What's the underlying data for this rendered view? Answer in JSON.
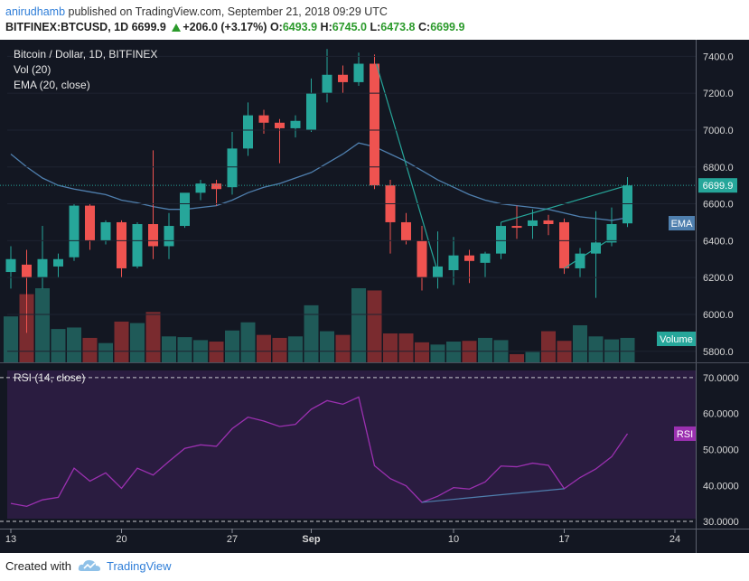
{
  "header": {
    "author": "anirudhamb",
    "published_text": "published on TradingView.com, September 21, 2018 09:29 UTC",
    "symbol": "BITFINEX:BTCUSD, 1D",
    "last": "6699.9",
    "change": "+206.0 (+3.17%)",
    "o_label": "O:",
    "o_value": "6493.9",
    "h_label": "H:",
    "h_value": "6745.0",
    "l_label": "L:",
    "l_value": "6473.8",
    "c_label": "C:",
    "c_value": "6699.9"
  },
  "legend": {
    "main_title": "Bitcoin / Dollar, 1D, BITFINEX",
    "vol": "Vol (20)",
    "ema": "EMA (20, close)",
    "rsi": "RSI (14, close)"
  },
  "badges": {
    "price": "6699.9",
    "ema": "EMA",
    "volume": "Volume",
    "rsi": "RSI"
  },
  "footer": {
    "created_with": "Created with",
    "brand": "TradingView"
  },
  "colors": {
    "bull": "#26a69a",
    "bear": "#ef5350",
    "bull_volume": "#1f5a58",
    "bear_volume": "#7a2b2f",
    "ema": "#4f7fae",
    "rsi": "#9b30b0",
    "background": "#131722"
  },
  "chart_data": [
    {
      "type": "candlestick",
      "title": "Bitcoin / Dollar, 1D, BITFINEX",
      "x_ticks": [
        "13",
        "20",
        "27",
        "Sep",
        "10",
        "17",
        "24"
      ],
      "y_ticks": [
        5800,
        6000,
        6200,
        6400,
        6600,
        6800,
        7000,
        7200,
        7400
      ],
      "ylim": [
        5740,
        7490
      ],
      "current_price": 6699.9,
      "candles": [
        {
          "o": 6230,
          "h": 6370,
          "l": 6140,
          "c": 6300
        },
        {
          "o": 6270,
          "h": 6350,
          "l": 5900,
          "c": 6200
        },
        {
          "o": 6200,
          "h": 6480,
          "l": 6140,
          "c": 6300
        },
        {
          "o": 6260,
          "h": 6330,
          "l": 6200,
          "c": 6300
        },
        {
          "o": 6310,
          "h": 6600,
          "l": 6290,
          "c": 6590
        },
        {
          "o": 6590,
          "h": 6600,
          "l": 6350,
          "c": 6400
        },
        {
          "o": 6400,
          "h": 6510,
          "l": 6380,
          "c": 6500
        },
        {
          "o": 6500,
          "h": 6510,
          "l": 6200,
          "c": 6250
        },
        {
          "o": 6260,
          "h": 6500,
          "l": 6250,
          "c": 6490
        },
        {
          "o": 6490,
          "h": 6890,
          "l": 6300,
          "c": 6370
        },
        {
          "o": 6370,
          "h": 6550,
          "l": 6300,
          "c": 6480
        },
        {
          "o": 6480,
          "h": 6650,
          "l": 6470,
          "c": 6660
        },
        {
          "o": 6660,
          "h": 6730,
          "l": 6620,
          "c": 6710
        },
        {
          "o": 6710,
          "h": 6730,
          "l": 6590,
          "c": 6680
        },
        {
          "o": 6690,
          "h": 6990,
          "l": 6650,
          "c": 6900
        },
        {
          "o": 6900,
          "h": 7150,
          "l": 6860,
          "c": 7080
        },
        {
          "o": 7080,
          "h": 7110,
          "l": 6980,
          "c": 7040
        },
        {
          "o": 7040,
          "h": 7060,
          "l": 6820,
          "c": 7010
        },
        {
          "o": 7010,
          "h": 7080,
          "l": 6960,
          "c": 7050
        },
        {
          "o": 7000,
          "h": 7280,
          "l": 6990,
          "c": 7200
        },
        {
          "o": 7200,
          "h": 7440,
          "l": 7150,
          "c": 7300
        },
        {
          "o": 7300,
          "h": 7350,
          "l": 7200,
          "c": 7260
        },
        {
          "o": 7260,
          "h": 7420,
          "l": 7240,
          "c": 7360
        },
        {
          "o": 7360,
          "h": 7410,
          "l": 6680,
          "c": 6700
        },
        {
          "o": 6700,
          "h": 6730,
          "l": 6330,
          "c": 6500
        },
        {
          "o": 6500,
          "h": 6550,
          "l": 6380,
          "c": 6400
        },
        {
          "o": 6400,
          "h": 6480,
          "l": 6130,
          "c": 6200
        },
        {
          "o": 6200,
          "h": 6450,
          "l": 6140,
          "c": 6260
        },
        {
          "o": 6240,
          "h": 6420,
          "l": 6160,
          "c": 6320
        },
        {
          "o": 6320,
          "h": 6350,
          "l": 6170,
          "c": 6290
        },
        {
          "o": 6280,
          "h": 6340,
          "l": 6200,
          "c": 6330
        },
        {
          "o": 6330,
          "h": 6500,
          "l": 6300,
          "c": 6480
        },
        {
          "o": 6480,
          "h": 6590,
          "l": 6410,
          "c": 6470
        },
        {
          "o": 6480,
          "h": 6570,
          "l": 6410,
          "c": 6510
        },
        {
          "o": 6510,
          "h": 6540,
          "l": 6430,
          "c": 6490
        },
        {
          "o": 6500,
          "h": 6520,
          "l": 6220,
          "c": 6250
        },
        {
          "o": 6250,
          "h": 6360,
          "l": 6200,
          "c": 6330
        },
        {
          "o": 6330,
          "h": 6560,
          "l": 6090,
          "c": 6390
        },
        {
          "o": 6390,
          "h": 6580,
          "l": 6370,
          "c": 6490
        },
        {
          "o": 6493.9,
          "h": 6745,
          "l": 6473.8,
          "c": 6699.9
        }
      ],
      "ema": [
        6870,
        6800,
        6740,
        6700,
        6680,
        6665,
        6650,
        6620,
        6605,
        6585,
        6570,
        6570,
        6580,
        6590,
        6620,
        6660,
        6690,
        6710,
        6740,
        6770,
        6820,
        6870,
        6930,
        6910,
        6870,
        6830,
        6780,
        6730,
        6690,
        6650,
        6620,
        6600,
        6590,
        6580,
        6570,
        6550,
        6530,
        6520,
        6510,
        6525
      ],
      "volume_rel": [
        0.62,
        0.92,
        1.0,
        0.45,
        0.47,
        0.33,
        0.26,
        0.55,
        0.53,
        0.68,
        0.35,
        0.34,
        0.3,
        0.28,
        0.43,
        0.54,
        0.37,
        0.33,
        0.35,
        0.77,
        0.42,
        0.37,
        1.0,
        0.97,
        0.39,
        0.39,
        0.27,
        0.24,
        0.28,
        0.29,
        0.33,
        0.3,
        0.11,
        0.14,
        0.42,
        0.29,
        0.5,
        0.35,
        0.31,
        0.33
      ],
      "trendline_from_index": 27,
      "trendline_to_index": 39
    },
    {
      "type": "line",
      "title": "RSI (14, close)",
      "y_ticks": [
        30,
        40,
        50,
        60,
        70
      ],
      "ylim": [
        28,
        74
      ],
      "levels": [
        70,
        30
      ],
      "values": [
        35.0,
        34.2,
        36.0,
        36.7,
        44.8,
        41.2,
        43.5,
        39.2,
        44.8,
        42.9,
        46.7,
        50.3,
        51.3,
        50.9,
        55.8,
        59.0,
        57.9,
        56.4,
        57.0,
        61.2,
        63.6,
        62.6,
        64.6,
        45.5,
        41.9,
        39.9,
        35.3,
        37.0,
        39.4,
        39.0,
        41.0,
        45.4,
        45.2,
        46.2,
        45.6,
        39.1,
        42.2,
        44.6,
        48.0,
        54.4
      ],
      "divergence_from_index": 26,
      "divergence_to_index": 35
    }
  ]
}
